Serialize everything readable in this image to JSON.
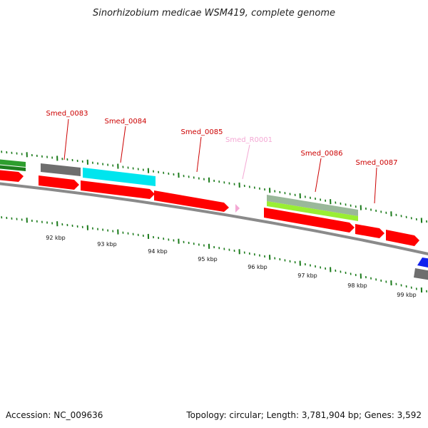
{
  "title": "Sinorhizobium medicae WSM419, complete genome",
  "footer": {
    "accession": "Accession: NC_009636",
    "summary": "Topology: circular; Length: 3,781,904 bp; Genes: 3,592"
  },
  "colors": {
    "cds": "#ff0000",
    "rna": "#f4a8d4",
    "label_cds": "#cc0000",
    "label_rna": "#f4a8d4",
    "tick": "#1a7a1a",
    "backbone": "#8a8a8a",
    "gray_feature": "#6e6e6e",
    "cyan_feature": "#00e5ee",
    "green_feature": "#2e9e2e",
    "lightgreen_feature": "#99ee33",
    "sage_feature": "#9ab89a",
    "blue_feature": "#1020ee"
  },
  "gene_labels": [
    {
      "name": "Smed_0083",
      "type": "CDS"
    },
    {
      "name": "Smed_0084",
      "type": "CDS"
    },
    {
      "name": "Smed_0085",
      "type": "CDS"
    },
    {
      "name": "Smed_R0001",
      "type": "RNA"
    },
    {
      "name": "Smed_0086",
      "type": "CDS"
    },
    {
      "name": "Smed_0087",
      "type": "CDS"
    }
  ],
  "kbp_labels": [
    "92 kbp",
    "93 kbp",
    "94 kbp",
    "95 kbp",
    "96 kbp",
    "97 kbp",
    "98 kbp",
    "99 kbp"
  ]
}
